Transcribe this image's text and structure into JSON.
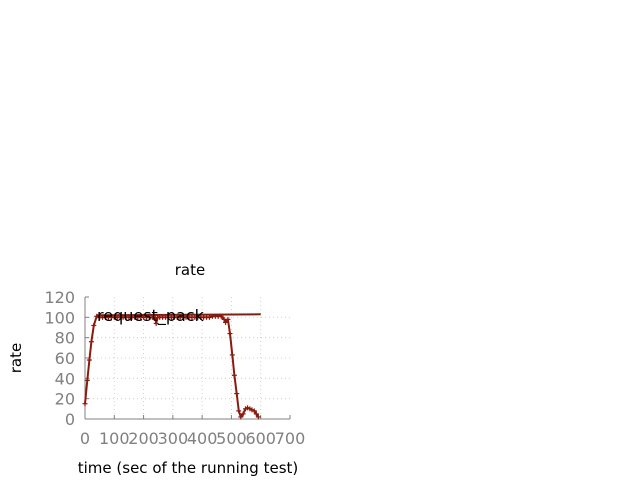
{
  "chart_data": {
    "type": "line",
    "title": "rate",
    "xlabel": "time (sec of the running test)",
    "ylabel": "rate",
    "xlim": [
      0,
      700
    ],
    "ylim": [
      0,
      120
    ],
    "xticks": [
      "0",
      "100",
      "200",
      "300",
      "400",
      "500",
      "600",
      "700"
    ],
    "yticks": [
      "0",
      "20",
      "40",
      "60",
      "80",
      "100",
      "120"
    ],
    "grid": true,
    "legend_position": "top-left",
    "color": "#8b1a0e",
    "series": [
      {
        "name": "request_pack",
        "points": [
          [
            0,
            15
          ],
          [
            8,
            38
          ],
          [
            15,
            58
          ],
          [
            22,
            76
          ],
          [
            30,
            92
          ],
          [
            40,
            101
          ],
          [
            50,
            100
          ],
          [
            60,
            100
          ],
          [
            70,
            100
          ],
          [
            80,
            100
          ],
          [
            90,
            100
          ],
          [
            100,
            100
          ],
          [
            110,
            100
          ],
          [
            120,
            100
          ],
          [
            130,
            100
          ],
          [
            140,
            100
          ],
          [
            150,
            100
          ],
          [
            160,
            100
          ],
          [
            170,
            100
          ],
          [
            180,
            100
          ],
          [
            190,
            100
          ],
          [
            200,
            100
          ],
          [
            210,
            100
          ],
          [
            220,
            100
          ],
          [
            230,
            100
          ],
          [
            240,
            99
          ],
          [
            243,
            94
          ],
          [
            248,
            100
          ],
          [
            255,
            100
          ],
          [
            265,
            100
          ],
          [
            275,
            100
          ],
          [
            285,
            100
          ],
          [
            295,
            100
          ],
          [
            305,
            100
          ],
          [
            315,
            100
          ],
          [
            325,
            100
          ],
          [
            335,
            100
          ],
          [
            345,
            100
          ],
          [
            355,
            100
          ],
          [
            365,
            100
          ],
          [
            375,
            100
          ],
          [
            385,
            100
          ],
          [
            395,
            100
          ],
          [
            405,
            100
          ],
          [
            415,
            100
          ],
          [
            425,
            100
          ],
          [
            435,
            101
          ],
          [
            445,
            101
          ],
          [
            455,
            101
          ],
          [
            465,
            101
          ],
          [
            475,
            98
          ],
          [
            480,
            95
          ],
          [
            488,
            98
          ],
          [
            495,
            84
          ],
          [
            503,
            63
          ],
          [
            510,
            43
          ],
          [
            518,
            25
          ],
          [
            525,
            8
          ],
          [
            532,
            2
          ],
          [
            540,
            5
          ],
          [
            548,
            10
          ],
          [
            555,
            11
          ],
          [
            563,
            10
          ],
          [
            570,
            9
          ],
          [
            578,
            8
          ],
          [
            585,
            5
          ],
          [
            592,
            2
          ]
        ],
        "trend_line": [
          [
            40,
            102
          ],
          [
            600,
            103
          ]
        ]
      }
    ]
  }
}
